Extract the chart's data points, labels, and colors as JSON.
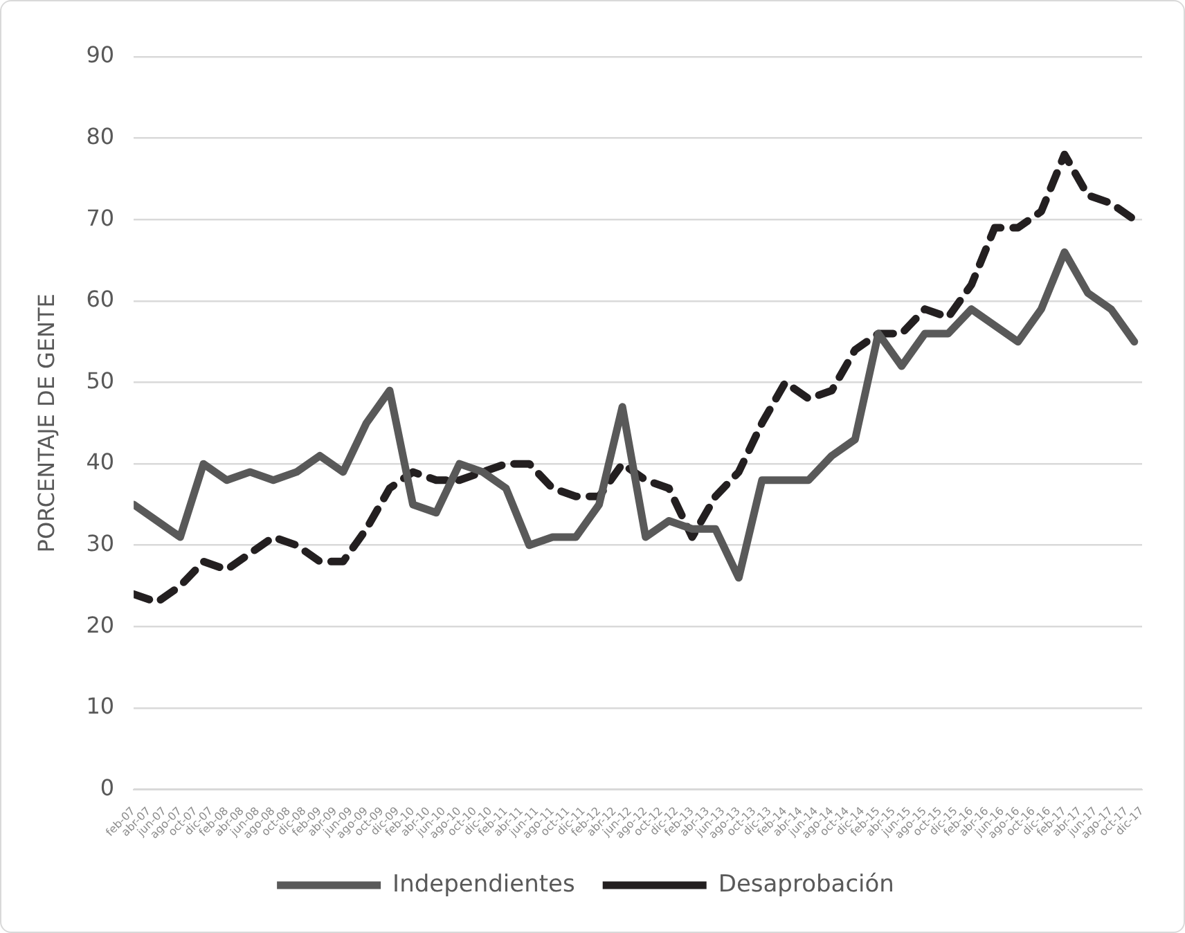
{
  "chart_data": {
    "type": "line",
    "ylabel": "PORCENTAJE DE GENTE",
    "x": [
      "2007-02",
      "2007-05",
      "2007-08",
      "2007-11",
      "2008-02",
      "2008-05",
      "2008-08",
      "2008-11",
      "2009-02",
      "2009-05",
      "2009-08",
      "2009-11",
      "2010-02",
      "2010-05",
      "2010-08",
      "2010-11",
      "2011-02",
      "2011-05",
      "2011-08",
      "2011-11",
      "2012-02",
      "2012-05",
      "2012-08",
      "2012-11",
      "2013-02",
      "2013-05",
      "2013-08",
      "2013-11",
      "2014-02",
      "2014-05",
      "2014-08",
      "2014-11",
      "2015-02",
      "2015-05",
      "2015-08",
      "2015-11",
      "2016-02",
      "2016-05",
      "2016-08",
      "2016-11",
      "2017-02",
      "2017-05",
      "2017-08",
      "2017-11"
    ],
    "series": [
      {
        "name": "Independientes",
        "color": "#595959",
        "line_style": "solid",
        "values": [
          35,
          33,
          31,
          40,
          38,
          39,
          38,
          39,
          41,
          39,
          45,
          49,
          35,
          34,
          40,
          39,
          37,
          30,
          31,
          31,
          35,
          47,
          31,
          33,
          32,
          32,
          26,
          38,
          38,
          38,
          41,
          43,
          56,
          52,
          56,
          56,
          59,
          57,
          55,
          59,
          66,
          61,
          59,
          55
        ]
      },
      {
        "name": "Desaprobación",
        "color": "#231f20",
        "line_style": "dashed",
        "values": [
          24,
          23,
          25,
          28,
          27,
          29,
          31,
          30,
          28,
          28,
          32,
          37,
          39,
          38,
          38,
          39,
          40,
          40,
          37,
          36,
          36,
          40,
          38,
          37,
          31,
          36,
          39,
          45,
          50,
          48,
          49,
          54,
          56,
          56,
          59,
          58,
          62,
          69,
          69,
          71,
          78,
          73,
          72,
          70
        ]
      }
    ],
    "xlim": [
      "2007-02",
      "2017-12"
    ],
    "xticks": [
      {
        "value": "2007-02",
        "label": "feb-07"
      },
      {
        "value": "2007-04",
        "label": "abr-07"
      },
      {
        "value": "2007-06",
        "label": "jun-07"
      },
      {
        "value": "2007-08",
        "label": "ago-07"
      },
      {
        "value": "2007-10",
        "label": "oct-07"
      },
      {
        "value": "2007-12",
        "label": "dic-07"
      },
      {
        "value": "2008-02",
        "label": "feb-08"
      },
      {
        "value": "2008-04",
        "label": "abr-08"
      },
      {
        "value": "2008-06",
        "label": "jun-08"
      },
      {
        "value": "2008-08",
        "label": "ago-08"
      },
      {
        "value": "2008-10",
        "label": "oct-08"
      },
      {
        "value": "2008-12",
        "label": "dic-08"
      },
      {
        "value": "2009-02",
        "label": "feb-09"
      },
      {
        "value": "2009-04",
        "label": "abr-09"
      },
      {
        "value": "2009-06",
        "label": "jun-09"
      },
      {
        "value": "2009-08",
        "label": "ago-09"
      },
      {
        "value": "2009-10",
        "label": "oct-09"
      },
      {
        "value": "2009-12",
        "label": "dic-09"
      },
      {
        "value": "2010-02",
        "label": "feb-10"
      },
      {
        "value": "2010-04",
        "label": "abr-10"
      },
      {
        "value": "2010-06",
        "label": "jun-10"
      },
      {
        "value": "2010-08",
        "label": "ago-10"
      },
      {
        "value": "2010-10",
        "label": "oct-10"
      },
      {
        "value": "2010-12",
        "label": "dic-10"
      },
      {
        "value": "2011-02",
        "label": "feb-11"
      },
      {
        "value": "2011-04",
        "label": "abr-11"
      },
      {
        "value": "2011-06",
        "label": "jun-11"
      },
      {
        "value": "2011-08",
        "label": "ago-11"
      },
      {
        "value": "2011-10",
        "label": "oct-11"
      },
      {
        "value": "2011-12",
        "label": "dic-11"
      },
      {
        "value": "2012-02",
        "label": "feb-12"
      },
      {
        "value": "2012-04",
        "label": "abr-12"
      },
      {
        "value": "2012-06",
        "label": "jun-12"
      },
      {
        "value": "2012-08",
        "label": "ago-12"
      },
      {
        "value": "2012-10",
        "label": "oct-12"
      },
      {
        "value": "2012-12",
        "label": "dic-12"
      },
      {
        "value": "2013-02",
        "label": "feb-13"
      },
      {
        "value": "2013-04",
        "label": "abr-13"
      },
      {
        "value": "2013-06",
        "label": "jun-13"
      },
      {
        "value": "2013-08",
        "label": "ago-13"
      },
      {
        "value": "2013-10",
        "label": "oct-13"
      },
      {
        "value": "2013-12",
        "label": "dic-13"
      },
      {
        "value": "2014-02",
        "label": "feb-14"
      },
      {
        "value": "2014-04",
        "label": "abr-14"
      },
      {
        "value": "2014-06",
        "label": "jun-14"
      },
      {
        "value": "2014-08",
        "label": "ago-14"
      },
      {
        "value": "2014-10",
        "label": "oct-14"
      },
      {
        "value": "2014-12",
        "label": "dic-14"
      },
      {
        "value": "2015-02",
        "label": "feb-15"
      },
      {
        "value": "2015-04",
        "label": "abr-15"
      },
      {
        "value": "2015-06",
        "label": "jun-15"
      },
      {
        "value": "2015-08",
        "label": "ago-15"
      },
      {
        "value": "2015-10",
        "label": "oct-15"
      },
      {
        "value": "2015-12",
        "label": "dic-15"
      },
      {
        "value": "2016-02",
        "label": "feb-16"
      },
      {
        "value": "2016-04",
        "label": "abr-16"
      },
      {
        "value": "2016-06",
        "label": "jun-16"
      },
      {
        "value": "2016-08",
        "label": "ago-16"
      },
      {
        "value": "2016-10",
        "label": "oct-16"
      },
      {
        "value": "2016-12",
        "label": "dic-16"
      },
      {
        "value": "2017-02",
        "label": "feb-17"
      },
      {
        "value": "2017-04",
        "label": "abr-17"
      },
      {
        "value": "2017-06",
        "label": "jun-17"
      },
      {
        "value": "2017-08",
        "label": "ago-17"
      },
      {
        "value": "2017-10",
        "label": "oct-17"
      },
      {
        "value": "2017-12",
        "label": "dic-17"
      }
    ],
    "ylim": [
      0,
      90
    ],
    "yticks": [
      0,
      10,
      20,
      30,
      40,
      50,
      60,
      70,
      80,
      90
    ],
    "grid": "y",
    "legend": "bottom",
    "marker": "none"
  }
}
